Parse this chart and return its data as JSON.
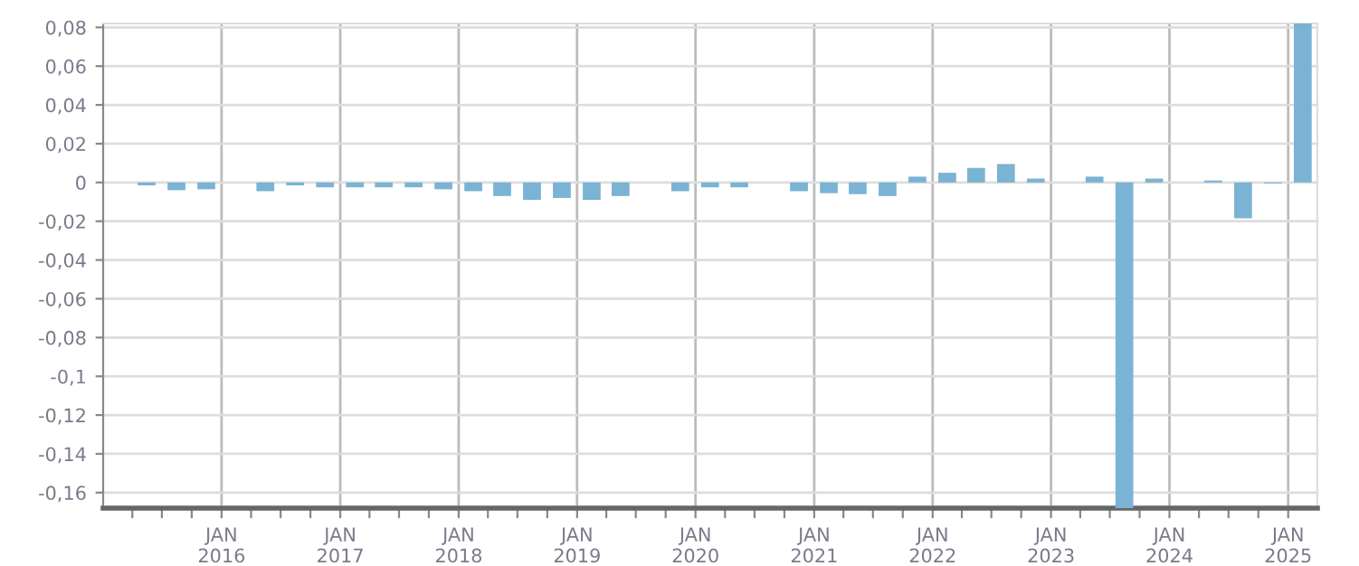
{
  "chart_data": {
    "type": "bar",
    "color": "#7ab3d4",
    "grid": true,
    "x": [
      "2015-05-15",
      "2015-08-15",
      "2015-11-15",
      "2016-05-15",
      "2016-08-15",
      "2016-11-15",
      "2017-02-15",
      "2017-05-15",
      "2017-08-15",
      "2017-11-15",
      "2018-02-15",
      "2018-05-15",
      "2018-08-15",
      "2018-11-15",
      "2019-02-15",
      "2019-05-15",
      "2019-11-15",
      "2020-02-15",
      "2020-05-15",
      "2020-11-15",
      "2021-02-15",
      "2021-05-15",
      "2021-08-15",
      "2021-11-15",
      "2022-02-15",
      "2022-05-15",
      "2022-08-15",
      "2022-11-15",
      "2023-05-15",
      "2023-08-15",
      "2023-11-15",
      "2024-05-15",
      "2024-08-15",
      "2024-11-15",
      "2025-02-15"
    ],
    "values": [
      -0.0015,
      -0.004,
      -0.0035,
      -0.0045,
      -0.0015,
      -0.0025,
      -0.0025,
      -0.0025,
      -0.0025,
      -0.0035,
      -0.0045,
      -0.007,
      -0.009,
      -0.008,
      -0.009,
      -0.007,
      -0.0045,
      -0.0025,
      -0.0025,
      -0.0045,
      -0.0055,
      -0.006,
      -0.007,
      0.003,
      0.005,
      0.0075,
      0.0095,
      0.002,
      0.003,
      -0.168,
      0.002,
      0.001,
      -0.0185,
      -0.0005,
      0.082
    ],
    "xlim": [
      "2015-01-01",
      "2025-04-01"
    ],
    "xticks": [
      {
        "value": "2015-04-01",
        "label": null
      },
      {
        "value": "2015-07-01",
        "label": null
      },
      {
        "value": "2015-10-01",
        "label": null
      },
      {
        "value": "2016-01-01",
        "label": "JAN\n2016"
      },
      {
        "value": "2016-04-01",
        "label": null
      },
      {
        "value": "2016-07-01",
        "label": null
      },
      {
        "value": "2016-10-01",
        "label": null
      },
      {
        "value": "2017-01-01",
        "label": "JAN\n2017"
      },
      {
        "value": "2017-04-01",
        "label": null
      },
      {
        "value": "2017-07-01",
        "label": null
      },
      {
        "value": "2017-10-01",
        "label": null
      },
      {
        "value": "2018-01-01",
        "label": "JAN\n2018"
      },
      {
        "value": "2018-04-01",
        "label": null
      },
      {
        "value": "2018-07-01",
        "label": null
      },
      {
        "value": "2018-10-01",
        "label": null
      },
      {
        "value": "2019-01-01",
        "label": "JAN\n2019"
      },
      {
        "value": "2019-04-01",
        "label": null
      },
      {
        "value": "2019-07-01",
        "label": null
      },
      {
        "value": "2019-10-01",
        "label": null
      },
      {
        "value": "2020-01-01",
        "label": "JAN\n2020"
      },
      {
        "value": "2020-04-01",
        "label": null
      },
      {
        "value": "2020-07-01",
        "label": null
      },
      {
        "value": "2020-10-01",
        "label": null
      },
      {
        "value": "2021-01-01",
        "label": "JAN\n2021"
      },
      {
        "value": "2021-04-01",
        "label": null
      },
      {
        "value": "2021-07-01",
        "label": null
      },
      {
        "value": "2021-10-01",
        "label": null
      },
      {
        "value": "2022-01-01",
        "label": "JAN\n2022"
      },
      {
        "value": "2022-04-01",
        "label": null
      },
      {
        "value": "2022-07-01",
        "label": null
      },
      {
        "value": "2022-10-01",
        "label": null
      },
      {
        "value": "2023-01-01",
        "label": "JAN\n2023"
      },
      {
        "value": "2023-04-01",
        "label": null
      },
      {
        "value": "2023-07-01",
        "label": null
      },
      {
        "value": "2023-10-01",
        "label": null
      },
      {
        "value": "2024-01-01",
        "label": "JAN\n2024"
      },
      {
        "value": "2024-04-01",
        "label": null
      },
      {
        "value": "2024-07-01",
        "label": null
      },
      {
        "value": "2024-10-01",
        "label": null
      },
      {
        "value": "2025-01-01",
        "label": "JAN\n2025"
      }
    ],
    "ylim": [
      -0.168,
      0.082
    ],
    "yticks": [
      {
        "value": 0.08,
        "label": "0,08"
      },
      {
        "value": 0.06,
        "label": "0,06"
      },
      {
        "value": 0.04,
        "label": "0,04"
      },
      {
        "value": 0.02,
        "label": "0,02"
      },
      0,
      {
        "value": -0.02,
        "label": "-0,02"
      },
      {
        "value": -0.04,
        "label": "-0,04"
      },
      {
        "value": -0.06,
        "label": "-0,06"
      },
      {
        "value": -0.08,
        "label": "-0,08"
      },
      {
        "value": -0.1,
        "label": "-0,1"
      },
      {
        "value": -0.12,
        "label": "-0,12"
      },
      {
        "value": -0.14,
        "label": "-0,14"
      },
      {
        "value": -0.16,
        "label": "-0,16"
      }
    ]
  }
}
